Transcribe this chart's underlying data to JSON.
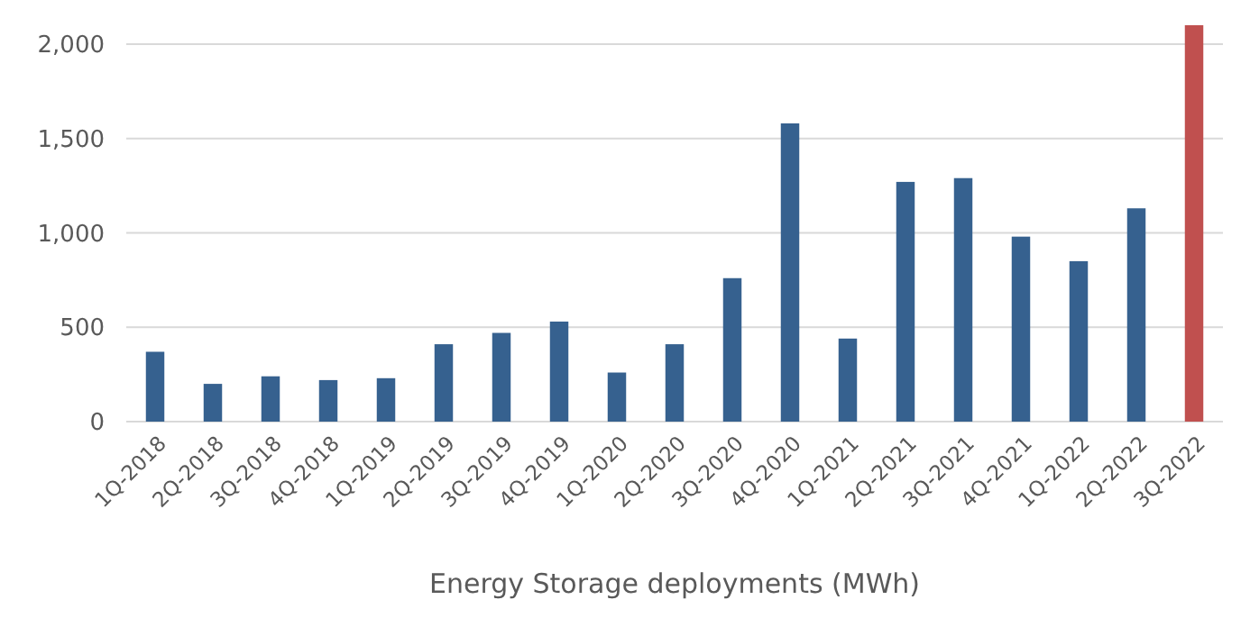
{
  "chart_data": {
    "type": "bar",
    "xlabel": "Energy Storage deployments (MWh)",
    "categories": [
      "1Q-2018",
      "2Q-2018",
      "3Q-2018",
      "4Q-2018",
      "1Q-2019",
      "2Q-2019",
      "3Q-2019",
      "4Q-2019",
      "1Q-2020",
      "2Q-2020",
      "3Q-2020",
      "4Q-2020",
      "1Q-2021",
      "2Q-2021",
      "3Q-2021",
      "4Q-2021",
      "1Q-2022",
      "2Q-2022",
      "3Q-2022"
    ],
    "values": [
      370,
      200,
      240,
      220,
      230,
      410,
      470,
      530,
      260,
      410,
      760,
      1580,
      440,
      1270,
      1290,
      980,
      850,
      1130,
      2100
    ],
    "colors": [
      "#36618f",
      "#36618f",
      "#36618f",
      "#36618f",
      "#36618f",
      "#36618f",
      "#36618f",
      "#36618f",
      "#36618f",
      "#36618f",
      "#36618f",
      "#36618f",
      "#36618f",
      "#36618f",
      "#36618f",
      "#36618f",
      "#36618f",
      "#36618f",
      "#c0504f"
    ],
    "ylim": [
      0,
      2100
    ],
    "yticks": [
      {
        "value": 0,
        "label": "0"
      },
      {
        "value": 500,
        "label": "500"
      },
      {
        "value": 1000,
        "label": "1,000"
      },
      {
        "value": 1500,
        "label": "1,500"
      },
      {
        "value": 2000,
        "label": "2,000"
      }
    ],
    "grid": "y"
  }
}
